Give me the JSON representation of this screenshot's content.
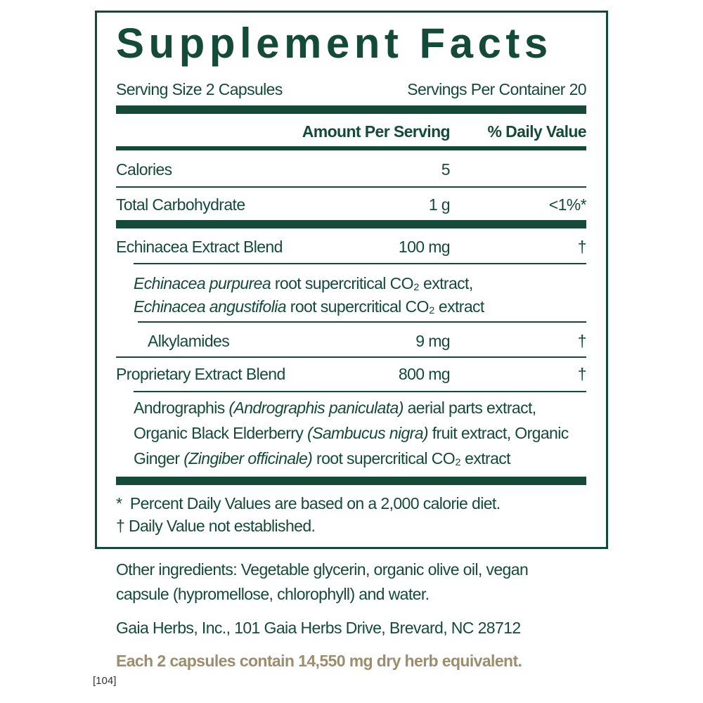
{
  "title": "Supplement Facts",
  "serving_size": "Serving Size 2 Capsules",
  "servings_per_container": "Servings Per Container 20",
  "headers": {
    "amount": "Amount Per Serving",
    "dv": "% Daily Value"
  },
  "rows": [
    {
      "name": "Calories",
      "amount": "5",
      "dv": ""
    },
    {
      "name": "Total Carbohydrate",
      "amount": "1 g",
      "dv": "<1%*"
    },
    {
      "name": "Echinacea Extract Blend",
      "amount": "100 mg",
      "dv": "†"
    },
    {
      "name": "Alkylamides",
      "amount": "9 mg",
      "dv": "†"
    },
    {
      "name": "Proprietary Extract Blend",
      "amount": "800 mg",
      "dv": "†"
    }
  ],
  "echinacea_ingredients": [
    [
      {
        "text": "Echinacea purpurea",
        "italic": true
      },
      {
        "text": " root supercritical CO₂ extract,",
        "italic": false
      }
    ],
    [
      {
        "text": "Echinacea angustifolia",
        "italic": true
      },
      {
        "text": " root supercritical CO₂ extract",
        "italic": false
      }
    ]
  ],
  "proprietary_ingredients": [
    [
      {
        "text": "Andrographis ",
        "italic": false
      },
      {
        "text": "(Andrographis paniculata)",
        "italic": true
      },
      {
        "text": " aerial parts extract,",
        "italic": false
      }
    ],
    [
      {
        "text": "Organic Black Elderberry ",
        "italic": false
      },
      {
        "text": "(Sambucus nigra)",
        "italic": true
      },
      {
        "text": " fruit extract, Organic",
        "italic": false
      }
    ],
    [
      {
        "text": "Ginger ",
        "italic": false
      },
      {
        "text": "(Zingiber officinale)",
        "italic": true
      },
      {
        "text": " root supercritical CO₂ extract",
        "italic": false
      }
    ]
  ],
  "footnotes": [
    "*  Percent Daily Values are based on a 2,000 calorie diet.",
    "† Daily Value not established."
  ],
  "other_ingredients": [
    "Other ingredients: Vegetable glycerin, organic olive oil, vegan",
    "capsule (hypromellose, chlorophyll) and water."
  ],
  "address": "Gaia Herbs, Inc., 101 Gaia Herbs Drive, Brevard, NC 28712",
  "dry_herb_note": "Each 2 capsules contain 14,550 mg dry herb equivalent.",
  "label_code": "[104]",
  "colors": {
    "primary": "#134a38",
    "accent": "#9b8d6e"
  }
}
